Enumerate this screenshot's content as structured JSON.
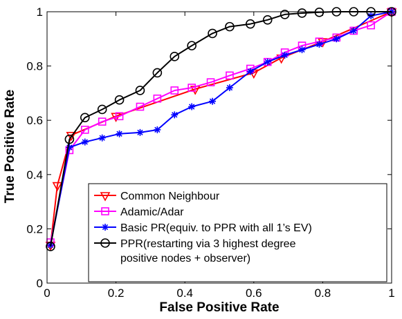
{
  "chart_data": {
    "type": "line",
    "xlabel": "False Positive Rate",
    "ylabel": "True Positive Rate",
    "xlim": [
      0,
      1
    ],
    "ylim": [
      0,
      1
    ],
    "xticks": [
      0,
      0.2,
      0.4,
      0.6,
      0.8,
      1
    ],
    "yticks": [
      0,
      0.2,
      0.4,
      0.6,
      0.8,
      1
    ],
    "xtick_labels": [
      "0",
      "0.2",
      "0.4",
      "0.6",
      "0.8",
      "1"
    ],
    "ytick_labels": [
      "0",
      "0.2",
      "0.4",
      "0.6",
      "0.8",
      "1"
    ],
    "grid": false,
    "legend_position": "lower-right",
    "series": [
      {
        "name": "Common Neighbour",
        "legend_lines": [
          "Common Neighbour"
        ],
        "color": "#ff0000",
        "marker": "triangle-down",
        "x": [
          0.01,
          0.03,
          0.07,
          0.2,
          0.43,
          0.6,
          0.68,
          0.8,
          1.0
        ],
        "y": [
          0.14,
          0.36,
          0.545,
          0.615,
          0.715,
          0.775,
          0.83,
          0.89,
          1.0
        ]
      },
      {
        "name": "Adamic/Adar",
        "legend_lines": [
          "Adamic/Adar"
        ],
        "color": "#ff00ff",
        "marker": "square",
        "x": [
          0.01,
          0.065,
          0.11,
          0.16,
          0.21,
          0.27,
          0.32,
          0.37,
          0.42,
          0.475,
          0.53,
          0.59,
          0.64,
          0.69,
          0.74,
          0.79,
          0.84,
          0.89,
          0.94,
          1.0
        ],
        "y": [
          0.15,
          0.49,
          0.565,
          0.595,
          0.615,
          0.65,
          0.68,
          0.71,
          0.72,
          0.74,
          0.765,
          0.79,
          0.815,
          0.85,
          0.875,
          0.89,
          0.905,
          0.93,
          0.95,
          1.0
        ]
      },
      {
        "name": "Basic PR(equiv. to PPR with all 1's EV)",
        "legend_lines": [
          "Basic PR(equiv. to PPR with all 1’s EV)"
        ],
        "color": "#0000ff",
        "marker": "asterisk",
        "x": [
          0.01,
          0.065,
          0.11,
          0.16,
          0.21,
          0.27,
          0.32,
          0.37,
          0.42,
          0.48,
          0.53,
          0.59,
          0.64,
          0.69,
          0.74,
          0.79,
          0.84,
          0.89,
          0.94,
          1.0
        ],
        "y": [
          0.14,
          0.5,
          0.52,
          0.535,
          0.55,
          0.555,
          0.565,
          0.62,
          0.65,
          0.67,
          0.72,
          0.78,
          0.815,
          0.84,
          0.86,
          0.88,
          0.9,
          0.93,
          0.985,
          1.0
        ]
      },
      {
        "name": "PPR(restarting via 3 highest degree positive nodes + observer)",
        "legend_lines": [
          "PPR(restarting via 3 highest degree",
          "positive nodes + observer)"
        ],
        "color": "#000000",
        "marker": "circle",
        "x": [
          0.01,
          0.065,
          0.11,
          0.16,
          0.21,
          0.27,
          0.32,
          0.37,
          0.42,
          0.48,
          0.53,
          0.59,
          0.64,
          0.69,
          0.74,
          0.79,
          0.84,
          0.89,
          0.94,
          1.0
        ],
        "y": [
          0.135,
          0.53,
          0.61,
          0.64,
          0.675,
          0.71,
          0.775,
          0.835,
          0.875,
          0.92,
          0.945,
          0.955,
          0.97,
          0.99,
          0.995,
          0.998,
          1.0,
          1.0,
          1.0,
          1.0
        ]
      }
    ]
  }
}
